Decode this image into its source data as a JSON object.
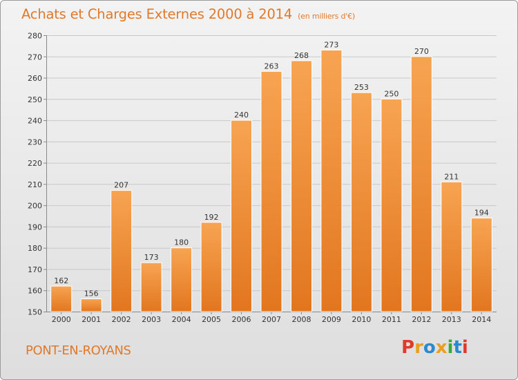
{
  "header": {
    "title": "Achats et Charges Externes 2000 à 2014",
    "unit": "(en milliers d'€)"
  },
  "footer": {
    "commune": "PONT-EN-ROYANS",
    "logo_text": "Proxiti",
    "logo_colors": [
      "#e03a2d",
      "#e8a020",
      "#2a8ad0",
      "#e8a020",
      "#3aa83a",
      "#2a8ad0",
      "#e03a2d"
    ]
  },
  "colors": {
    "bar_light": "#f7a452",
    "bar_dark": "#e2761f",
    "title": "#e0792a"
  },
  "chart_data": {
    "type": "bar",
    "title": "Achats et Charges Externes 2000 à 2014",
    "subtitle": "(en milliers d'€)",
    "categories": [
      "2000",
      "2001",
      "2002",
      "2003",
      "2004",
      "2005",
      "2006",
      "2007",
      "2008",
      "2009",
      "2010",
      "2011",
      "2012",
      "2013",
      "2014"
    ],
    "values": [
      162,
      156,
      207,
      173,
      180,
      192,
      240,
      263,
      268,
      273,
      253,
      250,
      270,
      211,
      194
    ],
    "ylim": [
      150,
      280
    ],
    "yticks": [
      150,
      160,
      170,
      180,
      190,
      200,
      210,
      220,
      230,
      240,
      250,
      260,
      270,
      280
    ],
    "grid": true,
    "xlabel": "",
    "ylabel": ""
  }
}
